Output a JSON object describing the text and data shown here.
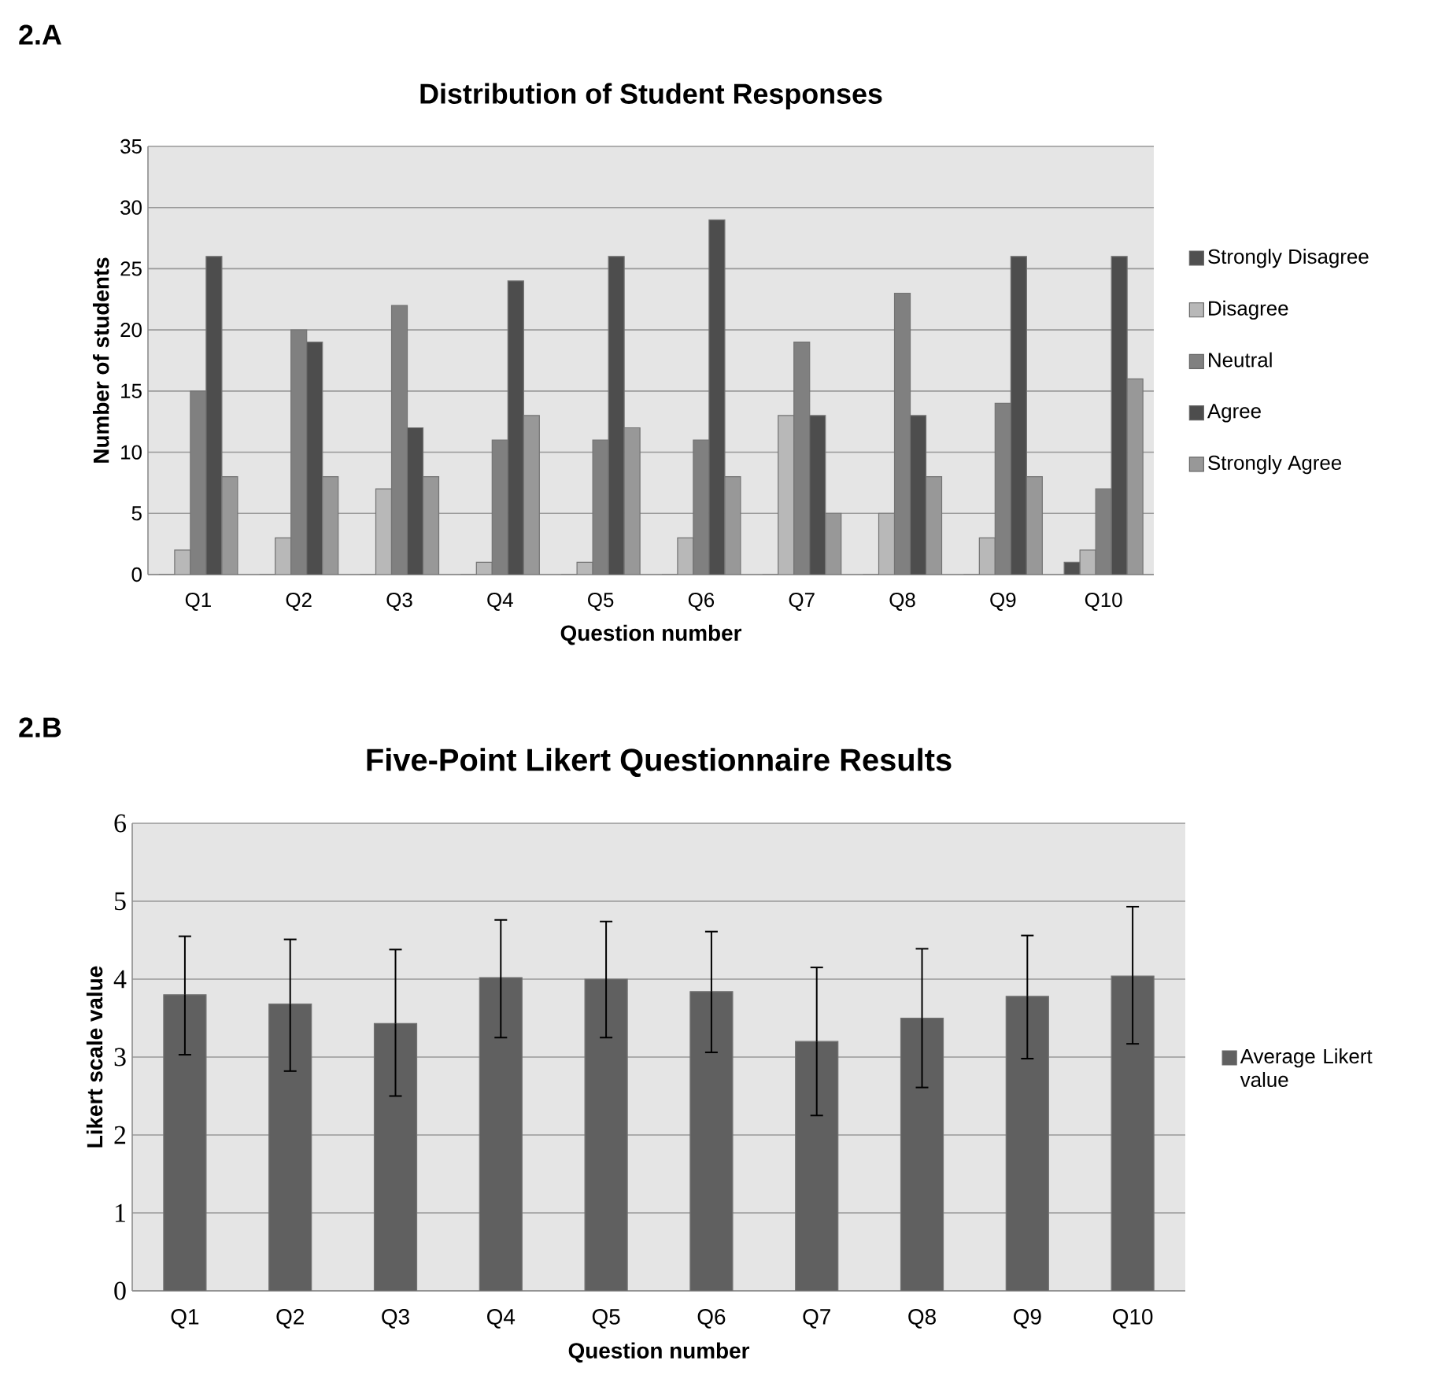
{
  "chart_data": [
    {
      "type": "bar",
      "title": "Distribution of Student Responses",
      "xlabel": "Question number",
      "ylabel": "Number of students",
      "annotations": [
        "2.A"
      ],
      "categories": [
        "Q1",
        "Q2",
        "Q3",
        "Q4",
        "Q5",
        "Q6",
        "Q7",
        "Q8",
        "Q9",
        "Q10"
      ],
      "series": [
        {
          "name": "Strongly Disagree",
          "color": "#505050",
          "values": [
            0,
            0,
            0,
            0,
            0,
            0,
            0,
            0,
            0,
            1
          ]
        },
        {
          "name": "Disagree",
          "color": "#b8b8b8",
          "values": [
            2,
            3,
            7,
            1,
            1,
            3,
            13,
            5,
            3,
            2
          ]
        },
        {
          "name": "Neutral",
          "color": "#808080",
          "values": [
            15,
            20,
            22,
            11,
            11,
            11,
            19,
            23,
            14,
            7
          ]
        },
        {
          "name": "Agree",
          "color": "#4d4d4d",
          "values": [
            26,
            19,
            12,
            24,
            26,
            29,
            13,
            13,
            26,
            26
          ]
        },
        {
          "name": "Strongly Agree",
          "color": "#989898",
          "values": [
            8,
            8,
            8,
            13,
            12,
            8,
            5,
            8,
            8,
            16
          ]
        }
      ],
      "ylim": [
        0,
        35
      ],
      "yticks": [
        0,
        5,
        10,
        15,
        20,
        25,
        30,
        35
      ],
      "grid": "y",
      "legend": "right"
    },
    {
      "type": "bar",
      "title": "Five-Point Likert Questionnaire Results",
      "xlabel": "Question number",
      "ylabel": "Likert scale value",
      "annotations": [
        "2.B"
      ],
      "categories": [
        "Q1",
        "Q2",
        "Q3",
        "Q4",
        "Q5",
        "Q6",
        "Q7",
        "Q8",
        "Q9",
        "Q10"
      ],
      "series": [
        {
          "name": "Average Likert value",
          "color": "#606060",
          "values": [
            3.8,
            3.68,
            3.43,
            4.02,
            4.0,
            3.84,
            3.2,
            3.5,
            3.78,
            4.04
          ],
          "errors": [
            [
              3.03,
              4.55
            ],
            [
              2.82,
              4.51
            ],
            [
              2.5,
              4.38
            ],
            [
              3.25,
              4.76
            ],
            [
              3.25,
              4.74
            ],
            [
              3.06,
              4.61
            ],
            [
              2.25,
              4.15
            ],
            [
              2.61,
              4.39
            ],
            [
              2.98,
              4.56
            ],
            [
              3.17,
              4.93
            ]
          ]
        }
      ],
      "ylim": [
        0,
        6
      ],
      "yticks": [
        0,
        1,
        2,
        3,
        4,
        5,
        6
      ],
      "grid": "y",
      "legend": "right"
    }
  ]
}
